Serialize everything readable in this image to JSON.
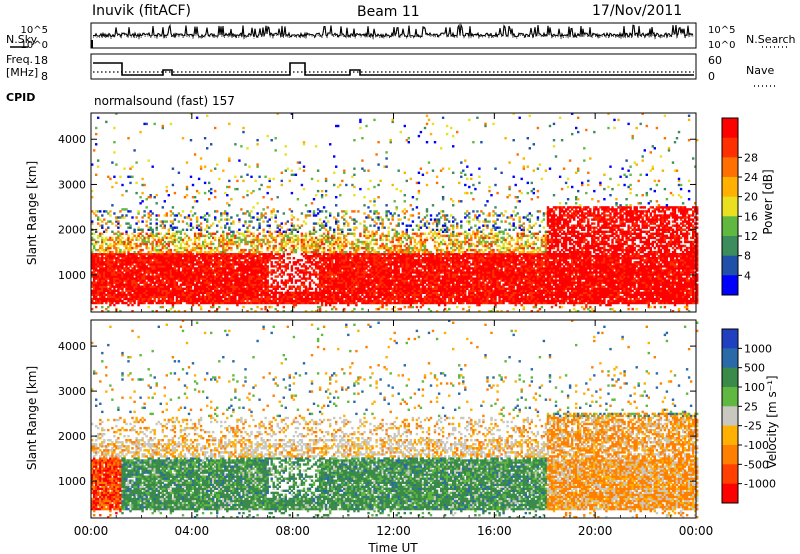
{
  "header": {
    "station": "Inuvik (fitACF)",
    "beam": "Beam 11",
    "date": "17/Nov/2011"
  },
  "side_labels": {
    "nsky": "N.Sky",
    "nsearch": "N.Search",
    "freq_top": "Freq.",
    "freq_unit": "[MHz]",
    "nave": "Nave",
    "cpid": "CPID"
  },
  "cpid_text": "normalsound (fast) 157",
  "noise_axis": {
    "left_ticks": [
      "10^5",
      "10^0"
    ],
    "right_ticks": [
      "10^5",
      "10^0"
    ]
  },
  "freq_axis": {
    "left_ticks": [
      "18",
      "8"
    ],
    "right_ticks": [
      "60",
      "0"
    ]
  },
  "colors": {
    "power_scale": [
      "#0000ff",
      "#2050a8",
      "#3c8c5c",
      "#60b840",
      "#e8e020",
      "#ffb000",
      "#ff7000",
      "#ff3000",
      "#ff0000"
    ],
    "velocity_scale": [
      "#2040c0",
      "#2a6aa8",
      "#3a8a4a",
      "#60b840",
      "#c8c8c0",
      "#ffb000",
      "#ff8000",
      "#ff4000",
      "#ff0000"
    ]
  },
  "chart_data": [
    {
      "type": "heatmap",
      "name": "power",
      "xlabel": "Time UT",
      "ylabel": "Slant Range [km]",
      "x_ticks": [
        "00:00",
        "04:00",
        "08:00",
        "12:00",
        "16:00",
        "20:00",
        "00:00"
      ],
      "y_ticks": [
        1000,
        2000,
        3000,
        4000
      ],
      "xlim": [
        0,
        24
      ],
      "ylim": [
        180,
        4580
      ],
      "colorbar_label": "Power [dB]",
      "colorbar_ticks": [
        4,
        8,
        12,
        16,
        20,
        24,
        28
      ]
    },
    {
      "type": "heatmap",
      "name": "velocity",
      "xlabel": "Time UT",
      "ylabel": "Slant Range [km]",
      "x_ticks": [
        "00:00",
        "04:00",
        "08:00",
        "12:00",
        "16:00",
        "20:00",
        "00:00"
      ],
      "y_ticks": [
        1000,
        2000,
        3000,
        4000
      ],
      "xlim": [
        0,
        24
      ],
      "ylim": [
        180,
        4580
      ],
      "colorbar_label": "Velocity [m s⁻¹]",
      "colorbar_ticks": [
        1000,
        500,
        100,
        25,
        -25,
        -100,
        -500,
        -1000
      ]
    }
  ]
}
